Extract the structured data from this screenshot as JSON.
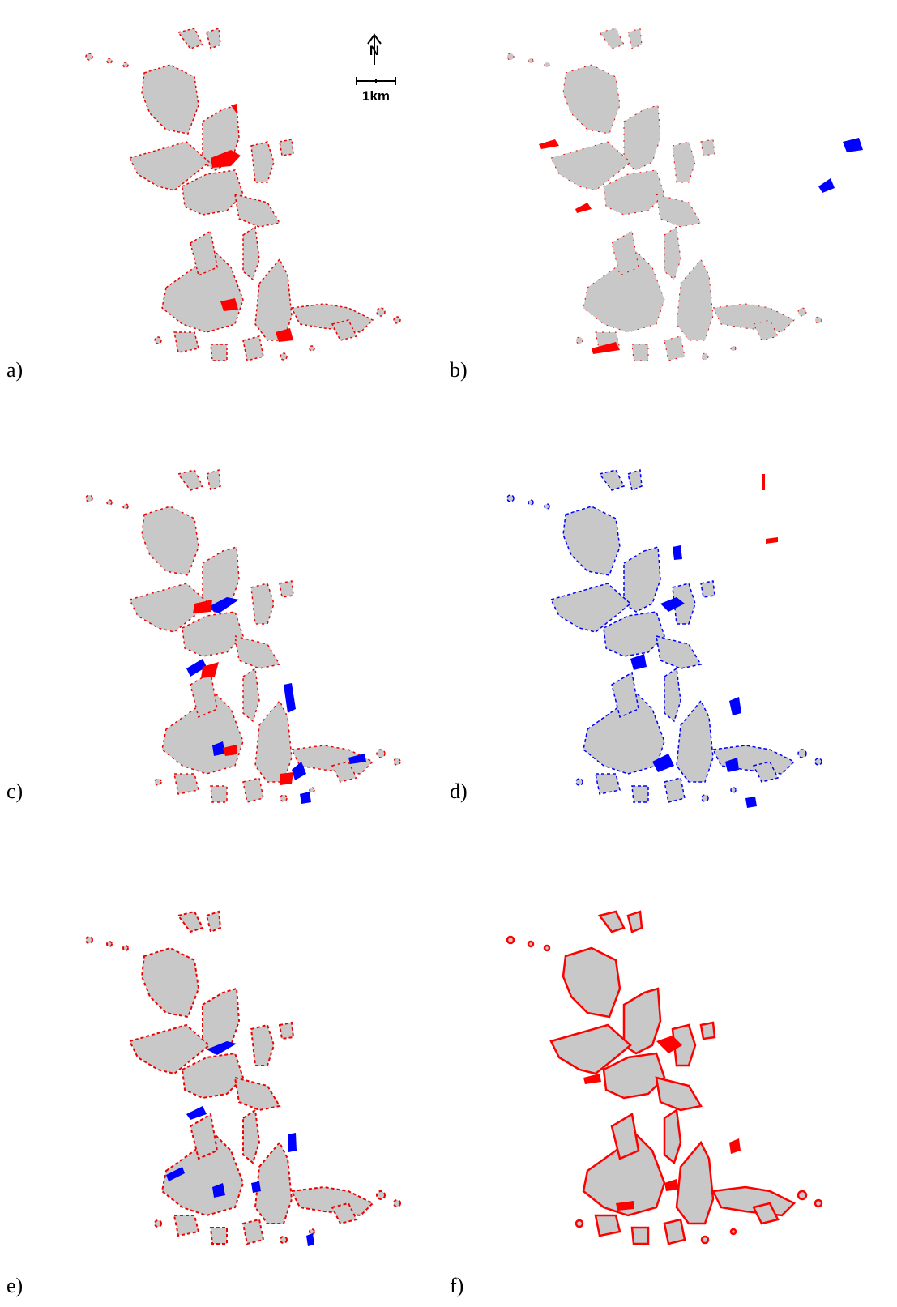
{
  "panels": [
    {
      "label": "a)"
    },
    {
      "label": "b)"
    },
    {
      "label": "c)"
    },
    {
      "label": "d)"
    },
    {
      "label": "e)"
    },
    {
      "label": "f)"
    }
  ],
  "scale_bar": {
    "label": "1km"
  },
  "north_arrow": {
    "label": "N"
  }
}
